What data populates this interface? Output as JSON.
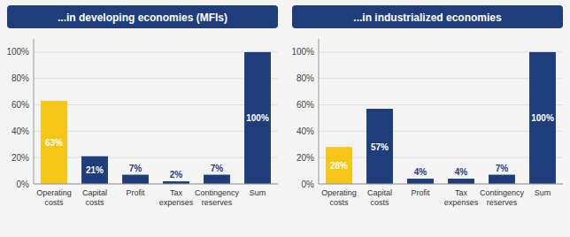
{
  "chart_data": [
    {
      "type": "bar",
      "title": "...in developing economies (MFIs)",
      "categories": [
        "Operating\ncosts",
        "Capital\ncosts",
        "Profit",
        "Tax\nexpenses",
        "Contingency\nreserves",
        "Sum"
      ],
      "values": [
        63,
        21,
        7,
        2,
        7,
        100
      ],
      "value_labels": [
        "63%",
        "21%",
        "7%",
        "2%",
        "7%",
        "100%"
      ],
      "colors": [
        "#F5C518",
        "#1F3D7A",
        "#1F3D7A",
        "#1F3D7A",
        "#1F3D7A",
        "#1F3D7A"
      ],
      "ylim": [
        0,
        110
      ],
      "yticks": [
        {
          "value": 0,
          "label": "0%"
        },
        {
          "value": 20,
          "label": "20%"
        },
        {
          "value": 40,
          "label": "40%"
        },
        {
          "value": 60,
          "label": "60%"
        },
        {
          "value": 80,
          "label": "80%"
        },
        {
          "value": 100,
          "label": "100%"
        }
      ],
      "grid": true,
      "data_labels": true
    },
    {
      "type": "bar",
      "title": "...in industrialized economies",
      "categories": [
        "Operating\ncosts",
        "Capital\ncosts",
        "Profit",
        "Tax\nexpenses",
        "Contingency\nreserves",
        "Sum"
      ],
      "values": [
        28,
        57,
        4,
        4,
        7,
        100
      ],
      "value_labels": [
        "28%",
        "57%",
        "4%",
        "4%",
        "7%",
        "100%"
      ],
      "colors": [
        "#F5C518",
        "#1F3D7A",
        "#1F3D7A",
        "#1F3D7A",
        "#1F3D7A",
        "#1F3D7A"
      ],
      "ylim": [
        0,
        110
      ],
      "yticks": [
        {
          "value": 0,
          "label": "0%"
        },
        {
          "value": 20,
          "label": "20%"
        },
        {
          "value": 40,
          "label": "40%"
        },
        {
          "value": 60,
          "label": "60%"
        },
        {
          "value": 80,
          "label": "80%"
        },
        {
          "value": 100,
          "label": "100%"
        }
      ],
      "grid": true,
      "data_labels": true
    }
  ]
}
